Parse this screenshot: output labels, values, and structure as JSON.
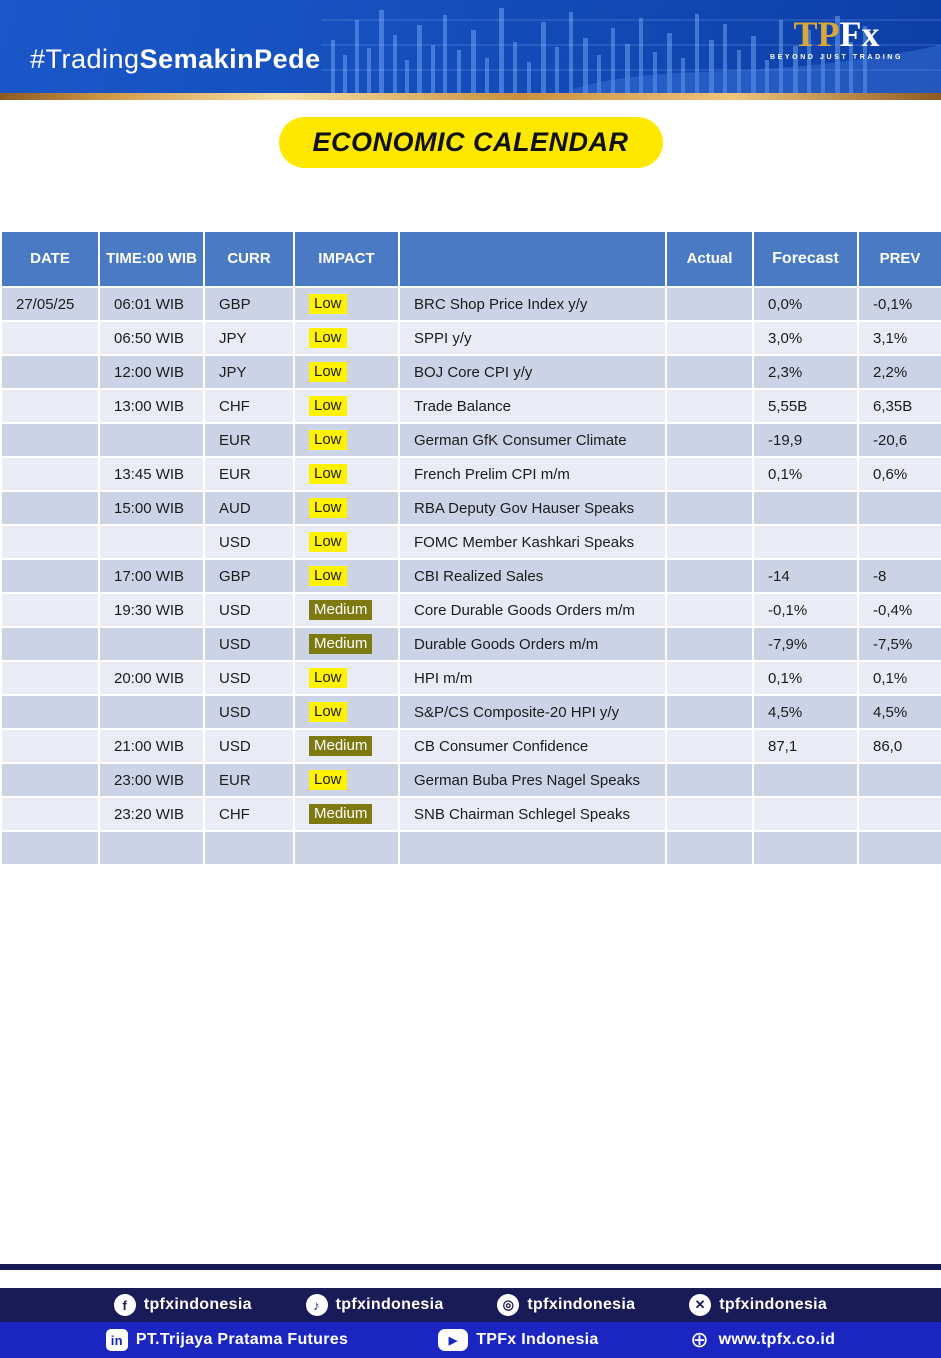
{
  "banner": {
    "hashtag_prefix": "#Trading",
    "hashtag_bold": "SemakinPede",
    "logo_tp": "TP",
    "logo_fx": "Fx",
    "logo_tagline": "BEYOND JUST TRADING"
  },
  "title": "ECONOMIC CALENDAR",
  "colors": {
    "header_blue": "#4a7ac4",
    "row_dark": "#cdd3e7",
    "row_light": "#e9ebf5",
    "impact_low_bg": "#fff200",
    "impact_medium_bg": "#7d7a12",
    "title_badge_bg": "#ffe800",
    "banner_blue": "#1550bd",
    "footer_navy": "#181b56",
    "footer_blue": "#1b25bf",
    "gold": "#d49a4a"
  },
  "table": {
    "headers": {
      "date": "DATE",
      "time": "TIME:00 WIB",
      "curr": "CURR",
      "impact": "IMPACT",
      "event": "",
      "actual": "Actual",
      "forecast": "Forecast",
      "prev": "PREV"
    },
    "rows": [
      {
        "date": "27/05/25",
        "time": "06:01 WIB",
        "curr": "GBP",
        "impact": "Low",
        "event": "BRC Shop Price Index y/y",
        "actual": "",
        "forecast": "0,0%",
        "prev": "-0,1%"
      },
      {
        "date": "",
        "time": "06:50 WIB",
        "curr": "JPY",
        "impact": "Low",
        "event": "SPPI y/y",
        "actual": "",
        "forecast": "3,0%",
        "prev": "3,1%"
      },
      {
        "date": "",
        "time": "12:00 WIB",
        "curr": "JPY",
        "impact": "Low",
        "event": "BOJ Core CPI y/y",
        "actual": "",
        "forecast": "2,3%",
        "prev": "2,2%"
      },
      {
        "date": "",
        "time": "13:00 WIB",
        "curr": "CHF",
        "impact": "Low",
        "event": "Trade Balance",
        "actual": "",
        "forecast": "5,55B",
        "prev": "6,35B"
      },
      {
        "date": "",
        "time": "",
        "curr": "EUR",
        "impact": "Low",
        "event": "German GfK Consumer Climate",
        "actual": "",
        "forecast": "-19,9",
        "prev": "-20,6"
      },
      {
        "date": "",
        "time": "13:45 WIB",
        "curr": "EUR",
        "impact": "Low",
        "event": "French Prelim CPI m/m",
        "actual": "",
        "forecast": "0,1%",
        "prev": "0,6%"
      },
      {
        "date": "",
        "time": "15:00 WIB",
        "curr": "AUD",
        "impact": "Low",
        "event": "RBA Deputy Gov Hauser Speaks",
        "actual": "",
        "forecast": "",
        "prev": ""
      },
      {
        "date": "",
        "time": "",
        "curr": "USD",
        "impact": "Low",
        "event": "FOMC Member Kashkari Speaks",
        "actual": "",
        "forecast": "",
        "prev": ""
      },
      {
        "date": "",
        "time": "17:00 WIB",
        "curr": "GBP",
        "impact": "Low",
        "event": "CBI Realized Sales",
        "actual": "",
        "forecast": "-14",
        "prev": "-8"
      },
      {
        "date": "",
        "time": "19:30 WIB",
        "curr": "USD",
        "impact": "Medium",
        "event": "Core Durable Goods Orders m/m",
        "actual": "",
        "forecast": "-0,1%",
        "prev": "-0,4%"
      },
      {
        "date": "",
        "time": "",
        "curr": "USD",
        "impact": "Medium",
        "event": "Durable Goods Orders m/m",
        "actual": "",
        "forecast": "-7,9%",
        "prev": "-7,5%"
      },
      {
        "date": "",
        "time": "20:00 WIB",
        "curr": "USD",
        "impact": "Low",
        "event": "HPI m/m",
        "actual": "",
        "forecast": "0,1%",
        "prev": "0,1%"
      },
      {
        "date": "",
        "time": "",
        "curr": "USD",
        "impact": "Low",
        "event": "S&P/CS Composite-20 HPI y/y",
        "actual": "",
        "forecast": "4,5%",
        "prev": "4,5%"
      },
      {
        "date": "",
        "time": "21:00 WIB",
        "curr": "USD",
        "impact": "Medium",
        "event": "CB Consumer Confidence",
        "actual": "",
        "forecast": "87,1",
        "prev": "86,0"
      },
      {
        "date": "",
        "time": "23:00 WIB",
        "curr": "EUR",
        "impact": "Low",
        "event": "German Buba Pres Nagel Speaks",
        "actual": "",
        "forecast": "",
        "prev": ""
      },
      {
        "date": "",
        "time": "23:20 WIB",
        "curr": "CHF",
        "impact": "Medium",
        "event": "SNB Chairman Schlegel Speaks",
        "actual": "",
        "forecast": "",
        "prev": ""
      },
      {
        "date": "",
        "time": "",
        "curr": "",
        "impact": "",
        "event": "",
        "actual": "",
        "forecast": "",
        "prev": ""
      }
    ]
  },
  "footer": {
    "row1": [
      {
        "icon": "facebook-icon",
        "glyph": "f",
        "label": "tpfxindonesia"
      },
      {
        "icon": "tiktok-icon",
        "glyph": "♪",
        "label": "tpfxindonesia"
      },
      {
        "icon": "instagram-icon",
        "glyph": "◎",
        "label": "tpfxindonesia"
      },
      {
        "icon": "x-icon",
        "glyph": "✕",
        "label": "tpfxindonesia"
      }
    ],
    "row2": [
      {
        "icon": "linkedin-icon",
        "glyph": "in",
        "label": "PT.Trijaya Pratama Futures"
      },
      {
        "icon": "youtube-icon",
        "glyph": "▶",
        "label": "TPFx Indonesia"
      },
      {
        "icon": "globe-icon",
        "glyph": "⊕",
        "label": "www.tpfx.co.id"
      }
    ]
  }
}
